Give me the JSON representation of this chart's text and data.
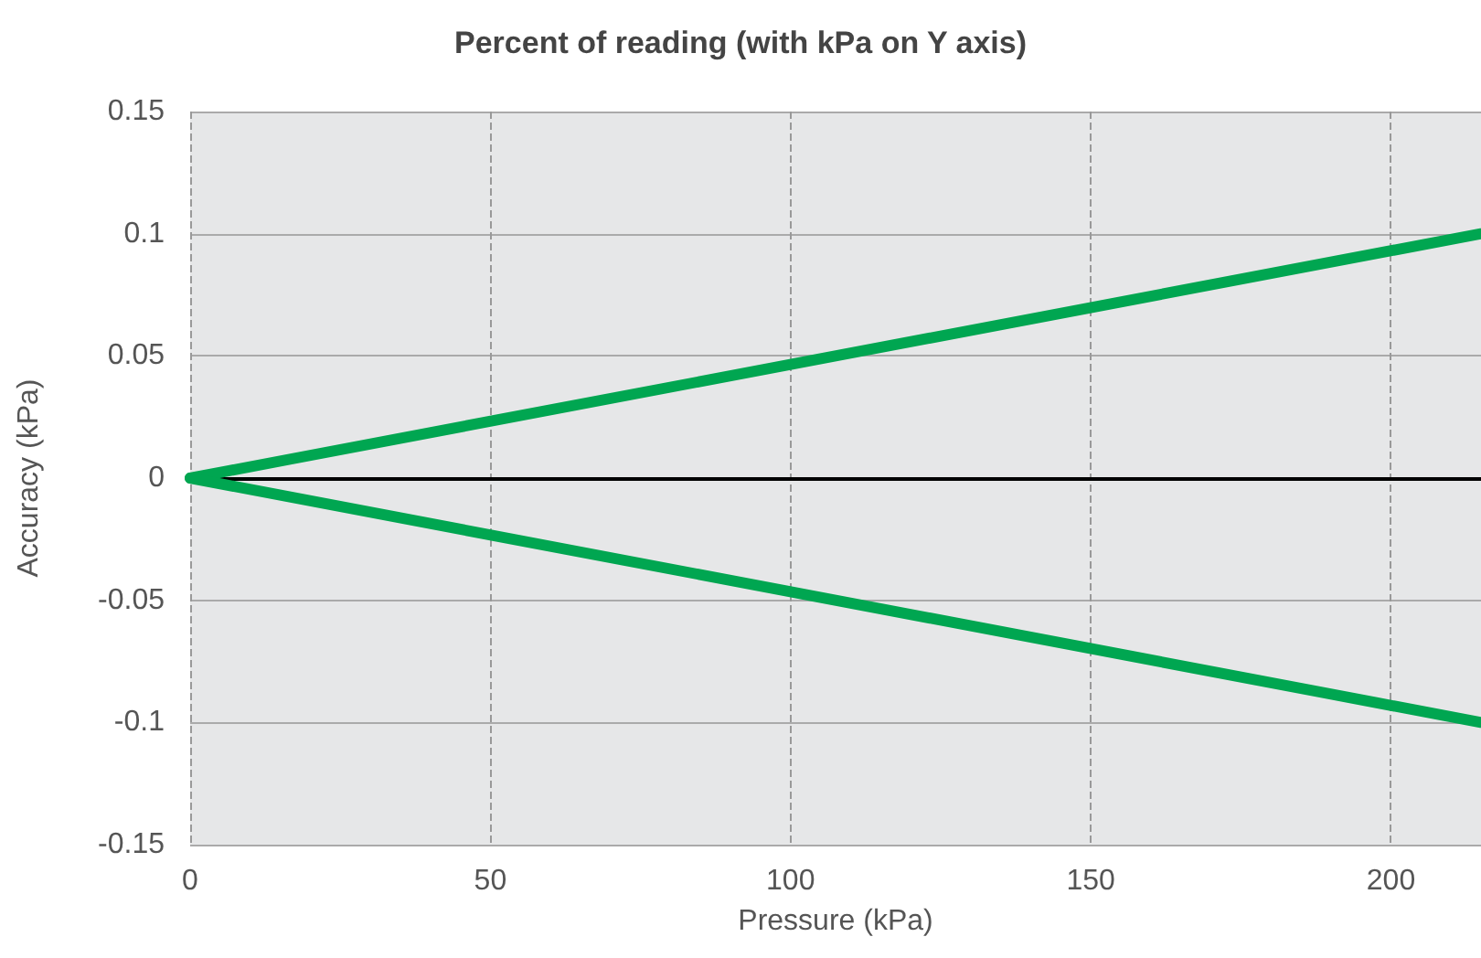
{
  "chart_data": {
    "type": "line",
    "title": "Percent of reading (with kPa on Y axis)",
    "xlabel": "Pressure (kPa)",
    "ylabel": "Accuracy (kPa)",
    "x": [
      0,
      215
    ],
    "series": [
      {
        "color": "#00a651",
        "values": [
          0,
          0.1
        ]
      },
      {
        "color": "#00a651",
        "values": [
          0,
          -0.1
        ]
      }
    ],
    "xlim": [
      0,
      215
    ],
    "xticks": [
      0,
      50,
      100,
      150,
      200
    ],
    "ylim": [
      -0.15,
      0.15
    ],
    "yticks": [
      -0.15,
      -0.1,
      -0.05,
      0,
      0.05,
      0.1,
      0.15
    ],
    "grid": true,
    "marker": "none",
    "line_style": "solid"
  }
}
